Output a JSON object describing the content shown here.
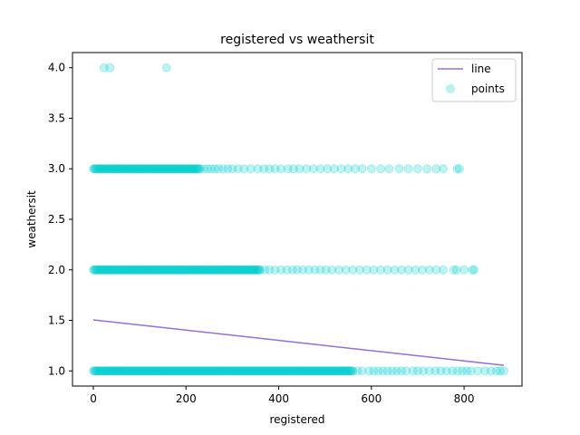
{
  "chart_data": {
    "type": "scatter",
    "title": "registered vs weathersit",
    "xlabel": "registered",
    "ylabel": "weathersit",
    "xlim": [
      -45,
      925
    ],
    "ylim": [
      0.85,
      4.15
    ],
    "xticks": [
      0,
      200,
      400,
      600,
      800
    ],
    "yticks": [
      1.0,
      1.5,
      2.0,
      2.5,
      3.0,
      3.5,
      4.0
    ],
    "xtick_labels": [
      "0",
      "200",
      "400",
      "600",
      "800"
    ],
    "ytick_labels": [
      "1.0",
      "1.5",
      "2.0",
      "2.5",
      "3.0",
      "3.5",
      "4.0"
    ],
    "grid": false,
    "legend_position": "top-right",
    "series": [
      {
        "name": "line",
        "kind": "line",
        "color": "#9370db",
        "x": [
          0,
          886
        ],
        "y": [
          1.505,
          1.055
        ]
      },
      {
        "name": "points",
        "kind": "scatter",
        "color": "#00ced1",
        "alpha": 0.25,
        "groups": [
          {
            "y": 1.0,
            "dense_to": 560,
            "sparse_x": [
              570,
              580,
              595,
              605,
              615,
              625,
              635,
              645,
              655,
              665,
              675,
              690,
              700,
              712,
              725,
              738,
              750,
              762,
              775,
              786,
              796,
              806,
              815,
              830,
              845,
              858,
              870,
              878,
              886
            ]
          },
          {
            "y": 2.0,
            "dense_to": 360,
            "sparse_x": [
              370,
              380,
              392,
              405,
              418,
              430,
              440,
              452,
              465,
              478,
              490,
              502,
              515,
              530,
              545,
              560,
              575,
              590,
              605,
              620,
              635,
              650,
              665,
              680,
              695,
              710,
              725,
              740,
              755,
              778,
              784,
              800,
              818,
              822
            ]
          },
          {
            "y": 3.0,
            "dense_to": 230,
            "sparse_x": [
              238,
              246,
              254,
              262,
              270,
              280,
              290,
              300,
              312,
              325,
              340,
              355,
              368,
              380,
              392,
              405,
              420,
              432,
              445,
              460,
              475,
              490,
              505,
              520,
              535,
              550,
              565,
              580,
              600,
              620,
              638,
              660,
              680,
              700,
              720,
              740,
              755,
              785,
              790
            ]
          },
          {
            "y": 4.0,
            "dense_to": -1,
            "sparse_x": [
              23,
              36,
              158
            ]
          }
        ]
      }
    ]
  }
}
